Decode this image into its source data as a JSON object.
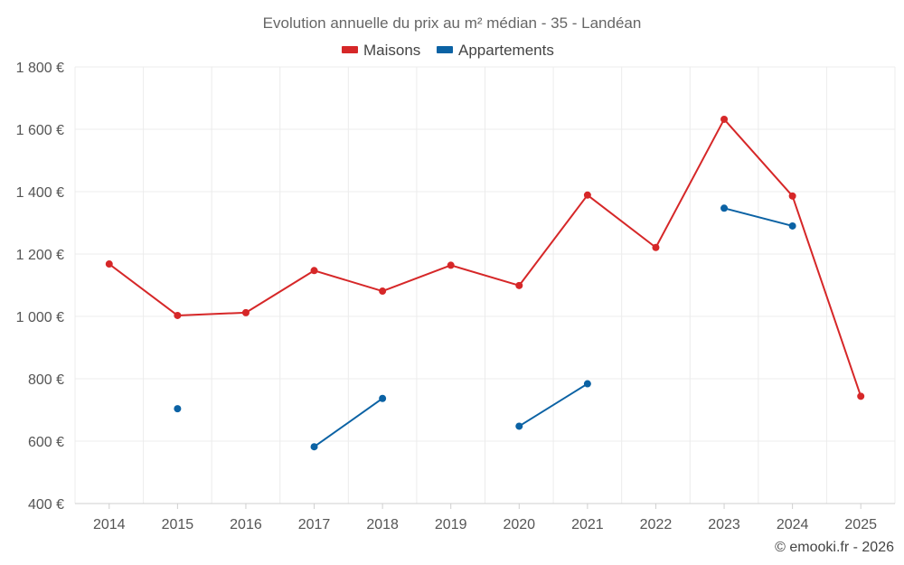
{
  "chart_data": {
    "type": "line",
    "title": "Evolution annuelle du prix au m² médian - 35 - Landéan",
    "categories": [
      "2014",
      "2015",
      "2016",
      "2017",
      "2018",
      "2019",
      "2020",
      "2021",
      "2022",
      "2023",
      "2024",
      "2025"
    ],
    "y_ticks": [
      400,
      600,
      800,
      1000,
      1200,
      1400,
      1600,
      1800
    ],
    "y_tick_labels": [
      "400 €",
      "600 €",
      "800 €",
      "1 000 €",
      "1 200 €",
      "1 400 €",
      "1 600 €",
      "1 800 €"
    ],
    "ylim": [
      400,
      1800
    ],
    "grid": true,
    "legend_position": "top-center",
    "series": [
      {
        "name": "Maisons",
        "color": "#d62728",
        "values": [
          1168,
          1003,
          1012,
          1147,
          1081,
          1164,
          1099,
          1389,
          1221,
          1632,
          1386,
          744
        ]
      },
      {
        "name": "Appartements",
        "color": "#0b62a4",
        "values": [
          null,
          704,
          null,
          582,
          737,
          null,
          648,
          784,
          null,
          1347,
          1290,
          null
        ]
      }
    ]
  },
  "credit": "© emooki.fr - 2026"
}
